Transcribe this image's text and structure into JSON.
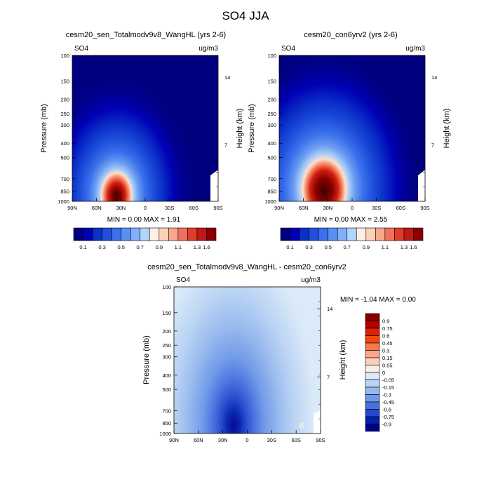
{
  "title": "SO4 JJA",
  "pressure_ticks": [
    "100",
    "150",
    "200",
    "250",
    "300",
    "400",
    "500",
    "700",
    "850",
    "1000"
  ],
  "height_ticks": [
    "14",
    "7"
  ],
  "lat_ticks": [
    "90N",
    "60N",
    "30N",
    "0",
    "30S",
    "60S",
    "90S"
  ],
  "chart_data": [
    {
      "type": "heatmap",
      "title": "cesm20_sen_Totalmodv9v8_WangHL (yrs 2-6)",
      "corner_left": "SO4",
      "corner_right": "ug/m3",
      "ylabel": "Pressure (mb)",
      "ylabel_right": "Height (km)",
      "min_label": "MIN =   0.00   MAX =   1.91",
      "min": 0.0,
      "max": 1.91,
      "x": [
        "90N",
        "60N",
        "30N",
        "0",
        "30S",
        "60S",
        "90S"
      ],
      "y": [
        100,
        150,
        200,
        250,
        300,
        400,
        500,
        700,
        850,
        1000
      ],
      "colorbar_labels": [
        "0.1",
        "0.3",
        "0.5",
        "0.7",
        "0.9",
        "1.1",
        "1.3",
        "1.6"
      ],
      "levels": [
        0.1,
        0.2,
        0.3,
        0.4,
        0.5,
        0.6,
        0.7,
        0.8,
        0.9,
        1.0,
        1.1,
        1.2,
        1.3,
        1.4,
        1.6
      ]
    },
    {
      "type": "heatmap",
      "title": "cesm20_con6yrv2 (yrs 2-6)",
      "corner_left": "SO4",
      "corner_right": "ug/m3",
      "ylabel": "Pressure (mb)",
      "ylabel_right": "Height (km)",
      "min_label": "MIN =   0.00   MAX =   2.55",
      "min": 0.0,
      "max": 2.55,
      "x": [
        "90N",
        "60N",
        "30N",
        "0",
        "30S",
        "60S",
        "90S"
      ],
      "y": [
        100,
        150,
        200,
        250,
        300,
        400,
        500,
        700,
        850,
        1000
      ],
      "colorbar_labels": [
        "0.1",
        "0.3",
        "0.5",
        "0.7",
        "0.9",
        "1.1",
        "1.3",
        "1.6"
      ],
      "levels": [
        0.1,
        0.2,
        0.3,
        0.4,
        0.5,
        0.6,
        0.7,
        0.8,
        0.9,
        1.0,
        1.1,
        1.2,
        1.3,
        1.4,
        1.6
      ]
    },
    {
      "type": "heatmap",
      "title": "cesm20_sen_Totalmodv9v8_WangHL - cesm20_con6yrv2",
      "corner_left": "SO4",
      "corner_right": "ug/m3",
      "ylabel": "Pressure (mb)",
      "ylabel_right": "Height (km)",
      "min_label": "MIN =  -1.04   MAX =   0.00",
      "min": -1.04,
      "max": 0.0,
      "x": [
        "90N",
        "60N",
        "30N",
        "0",
        "30S",
        "60S",
        "90S"
      ],
      "y": [
        100,
        150,
        200,
        250,
        300,
        400,
        500,
        700,
        850,
        1000
      ],
      "colorbar_labels": [
        "0.9",
        "0.75",
        "0.6",
        "0.45",
        "0.3",
        "0.15",
        "0.05",
        "0",
        "-0.05",
        "-0.15",
        "-0.3",
        "-0.45",
        "-0.6",
        "-0.75",
        "-0.9"
      ]
    }
  ],
  "colors": {
    "abs_scale": [
      "#00007e",
      "#0000b4",
      "#0a30c8",
      "#1f50dc",
      "#3a70ec",
      "#5890f2",
      "#80b0f8",
      "#b0d4fb",
      "#fff0e6",
      "#fdd0b8",
      "#f8a888",
      "#f07060",
      "#e03c28",
      "#c01818",
      "#8c0000"
    ],
    "diff_scale": [
      "#840000",
      "#b40000",
      "#e02000",
      "#f04810",
      "#f87848",
      "#fba888",
      "#fdcdb8",
      "#fdeee6",
      "#dbeaf8",
      "#bad4f4",
      "#96b8ee",
      "#6e98e8",
      "#4870e0",
      "#2448cc",
      "#0020b0",
      "#000088"
    ]
  }
}
